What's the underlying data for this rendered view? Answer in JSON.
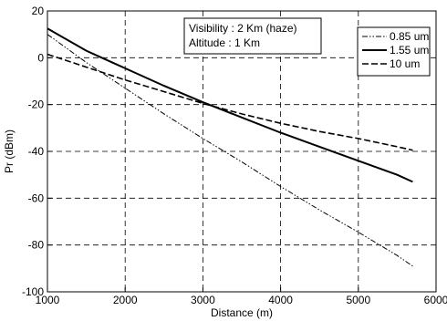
{
  "chart_data": {
    "type": "line",
    "xlabel": "Distance (m)",
    "ylabel": "Pr (dBm)",
    "xlim": [
      1000,
      6000
    ],
    "ylim": [
      -100,
      20
    ],
    "x_ticks": [
      1000,
      2000,
      3000,
      4000,
      5000,
      6000
    ],
    "y_ticks": [
      20,
      0,
      -20,
      -40,
      -60,
      -80,
      -100
    ],
    "grid": true,
    "legend_position": "top-right",
    "annotation": [
      "Visibility : 2 Km (haze)",
      "Altitude : 1 Km"
    ],
    "series": [
      {
        "name": "0.85 um",
        "style": "dashdotdot",
        "x": [
          1000,
          1500,
          2000,
          2500,
          3000,
          3500,
          4000,
          4500,
          5000,
          5500,
          5700
        ],
        "y": [
          10,
          -2,
          -13,
          -24,
          -34.5,
          -44.5,
          -55,
          -65,
          -74.5,
          -84.5,
          -89
        ]
      },
      {
        "name": "1.55 um",
        "style": "solid",
        "x": [
          1000,
          1500,
          2000,
          2500,
          3000,
          3500,
          4000,
          4500,
          5000,
          5500,
          5700
        ],
        "y": [
          12.5,
          3,
          -4.5,
          -12,
          -19,
          -25.5,
          -32,
          -38,
          -44,
          -50,
          -53
        ]
      },
      {
        "name": "10 um",
        "style": "dashed",
        "x": [
          1000,
          1500,
          2000,
          2500,
          3000,
          3500,
          4000,
          4500,
          5000,
          5500,
          5700
        ],
        "y": [
          1.5,
          -4,
          -9.5,
          -14.5,
          -19.5,
          -24,
          -28,
          -31.5,
          -34.5,
          -38,
          -39.5
        ]
      }
    ]
  }
}
